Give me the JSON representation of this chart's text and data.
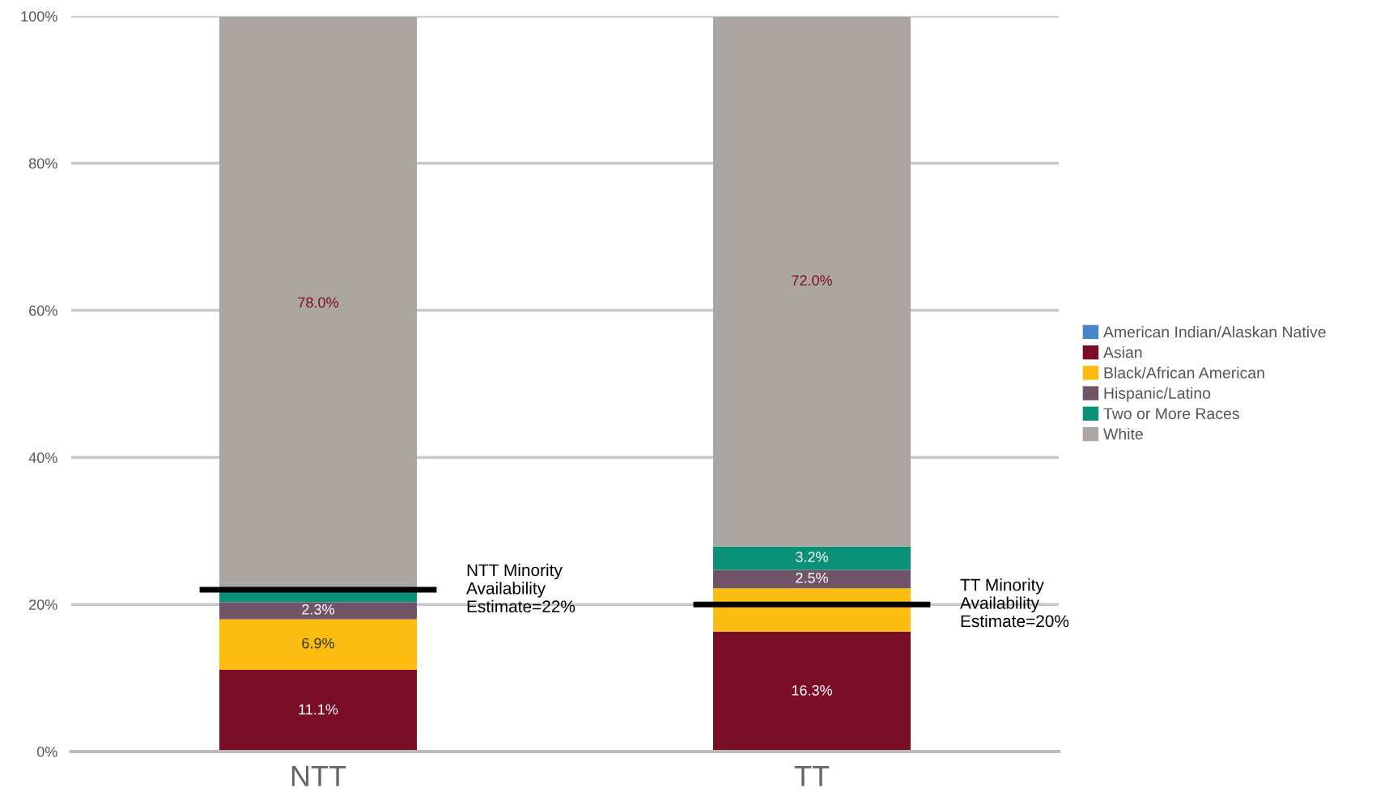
{
  "chart_data": {
    "type": "bar",
    "stacked": true,
    "categories": [
      "NTT",
      "TT"
    ],
    "series": [
      {
        "name": "American Indian/Alaskan Native",
        "color": "#4a86c8",
        "values": [
          0,
          0
        ],
        "value_labels": [
          null,
          null
        ]
      },
      {
        "name": "Asian",
        "color": "#7a0e26",
        "values": [
          11.1,
          16.3
        ],
        "value_labels": [
          "11.1%",
          "16.3%"
        ]
      },
      {
        "name": "Black/African American",
        "color": "#fdbd10",
        "values": [
          6.9,
          5.9
        ],
        "value_labels": [
          "6.9%",
          null
        ]
      },
      {
        "name": "Hispanic/Latino",
        "color": "#715468",
        "values": [
          2.3,
          2.5
        ],
        "value_labels": [
          "2.3%",
          "2.5%"
        ]
      },
      {
        "name": "Two or More Races",
        "color": "#0b9178",
        "values": [
          1.6,
          3.2
        ],
        "value_labels": [
          null,
          "3.2%"
        ]
      },
      {
        "name": "White",
        "color": "#aca6a2",
        "values": [
          78.0,
          72.0
        ],
        "value_labels": [
          "78.0%",
          "72.0%"
        ]
      }
    ],
    "ylim": [
      0,
      100
    ],
    "yticks": [
      {
        "value": 0,
        "label": "0%"
      },
      {
        "value": 20,
        "label": "20%"
      },
      {
        "value": 40,
        "label": "40%"
      },
      {
        "value": 60,
        "label": "60%"
      },
      {
        "value": 80,
        "label": "80%"
      },
      {
        "value": 100,
        "label": "100%"
      }
    ],
    "grid": "y",
    "legend": "right",
    "ref_lines": [
      {
        "axis": "y",
        "value": 22,
        "label": "NTT Minority\nAvailability\nEstimate=22%",
        "color": "#000000"
      },
      {
        "axis": "y",
        "value": 20,
        "label": "TT Minority\nAvailability\nEstimate=20%",
        "color": "#000000"
      }
    ]
  }
}
